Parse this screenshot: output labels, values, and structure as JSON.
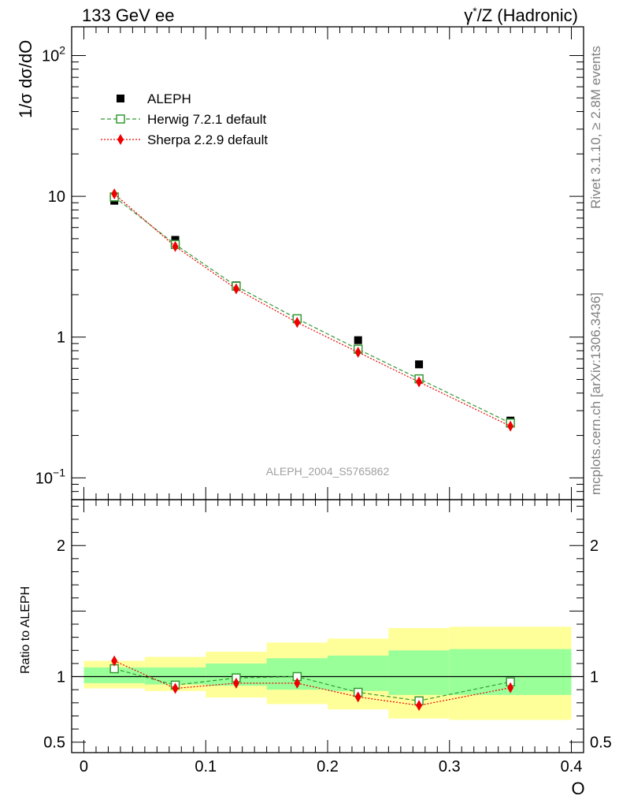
{
  "header": {
    "left": "133 GeV ee",
    "right_gamma": "γ",
    "right_star": "*",
    "right_rest": "/Z (Hadronic)"
  },
  "side_text": {
    "rivet": "Rivet 3.1.10, ≥ 2.8M events",
    "mcplots": "mcplots.cern.ch [arXiv:1306.3436]"
  },
  "colors": {
    "aleph": "#000000",
    "herwig": "#339933",
    "sherpa": "#ee0000",
    "band_inner": "#99ff99",
    "band_outer": "#ffff99"
  },
  "chart_data": [
    {
      "type": "scatter",
      "panel": "main",
      "title": "",
      "xlabel": "",
      "ylabel": "1/σ  dσ/dO",
      "yscale": "log",
      "ylim": [
        0.07,
        160
      ],
      "xlim": [
        -0.01,
        0.41
      ],
      "yticks": [
        {
          "value": 0.1,
          "base": "10",
          "exp": "−1"
        },
        {
          "value": 1,
          "label": "1"
        },
        {
          "value": 10,
          "label": "10"
        },
        {
          "value": 100,
          "base": "10",
          "exp": "2"
        }
      ],
      "watermark": "ALEPH_2004_S5765862",
      "legend_position": "top-left",
      "x": [
        0.025,
        0.075,
        0.125,
        0.175,
        0.225,
        0.275,
        0.35
      ],
      "series": [
        {
          "name": "ALEPH",
          "marker": "square-filled",
          "values": [
            9.3,
            4.9,
            2.33,
            1.35,
            0.95,
            0.64,
            0.255
          ]
        },
        {
          "name": "Herwig 7.2.1 default",
          "marker": "square-open",
          "line": "dashed",
          "values": [
            9.9,
            4.55,
            2.3,
            1.35,
            0.82,
            0.505,
            0.245
          ]
        },
        {
          "name": "Sherpa 2.2.9 default",
          "marker": "diamond-filled",
          "line": "dotted",
          "values": [
            10.4,
            4.4,
            2.2,
            1.27,
            0.78,
            0.48,
            0.233
          ]
        }
      ]
    },
    {
      "type": "scatter",
      "panel": "ratio",
      "xlabel": "O",
      "ylabel": "Ratio to ALEPH",
      "ylim": [
        0.42,
        2.35
      ],
      "xlim": [
        -0.01,
        0.41
      ],
      "xticks": [
        {
          "value": 0,
          "label": "0"
        },
        {
          "value": 0.1,
          "label": "0.1"
        },
        {
          "value": 0.2,
          "label": "0.2"
        },
        {
          "value": 0.3,
          "label": "0.3"
        },
        {
          "value": 0.4,
          "label": "0.4"
        }
      ],
      "yticks": [
        {
          "value": 0.5,
          "label": "0.5"
        },
        {
          "value": 1,
          "label": "1"
        },
        {
          "value": 2,
          "label": "2"
        }
      ],
      "bands": [
        {
          "xlo": 0.0,
          "xhi": 0.05,
          "inner": [
            0.95,
            1.07
          ],
          "outer": [
            0.91,
            1.12
          ]
        },
        {
          "xlo": 0.05,
          "xhi": 0.1,
          "inner": [
            0.94,
            1.07
          ],
          "outer": [
            0.89,
            1.15
          ]
        },
        {
          "xlo": 0.1,
          "xhi": 0.15,
          "inner": [
            0.93,
            1.1
          ],
          "outer": [
            0.84,
            1.19
          ]
        },
        {
          "xlo": 0.15,
          "xhi": 0.2,
          "inner": [
            0.9,
            1.14
          ],
          "outer": [
            0.79,
            1.26
          ]
        },
        {
          "xlo": 0.2,
          "xhi": 0.25,
          "inner": [
            0.89,
            1.16
          ],
          "outer": [
            0.75,
            1.29
          ]
        },
        {
          "xlo": 0.25,
          "xhi": 0.3,
          "inner": [
            0.86,
            1.2
          ],
          "outer": [
            0.68,
            1.37
          ]
        },
        {
          "xlo": 0.3,
          "xhi": 0.4,
          "inner": [
            0.86,
            1.21
          ],
          "outer": [
            0.67,
            1.38
          ]
        }
      ],
      "x": [
        0.025,
        0.075,
        0.125,
        0.175,
        0.225,
        0.275,
        0.35
      ],
      "series": [
        {
          "name": "Herwig 7.2.1 default",
          "marker": "square-open",
          "line": "dashed",
          "values": [
            1.06,
            0.935,
            0.99,
            1.0,
            0.88,
            0.815,
            0.96
          ]
        },
        {
          "name": "Sherpa 2.2.9 default",
          "marker": "diamond-filled",
          "line": "dotted",
          "values": [
            1.12,
            0.91,
            0.95,
            0.95,
            0.845,
            0.78,
            0.915
          ]
        }
      ]
    }
  ]
}
